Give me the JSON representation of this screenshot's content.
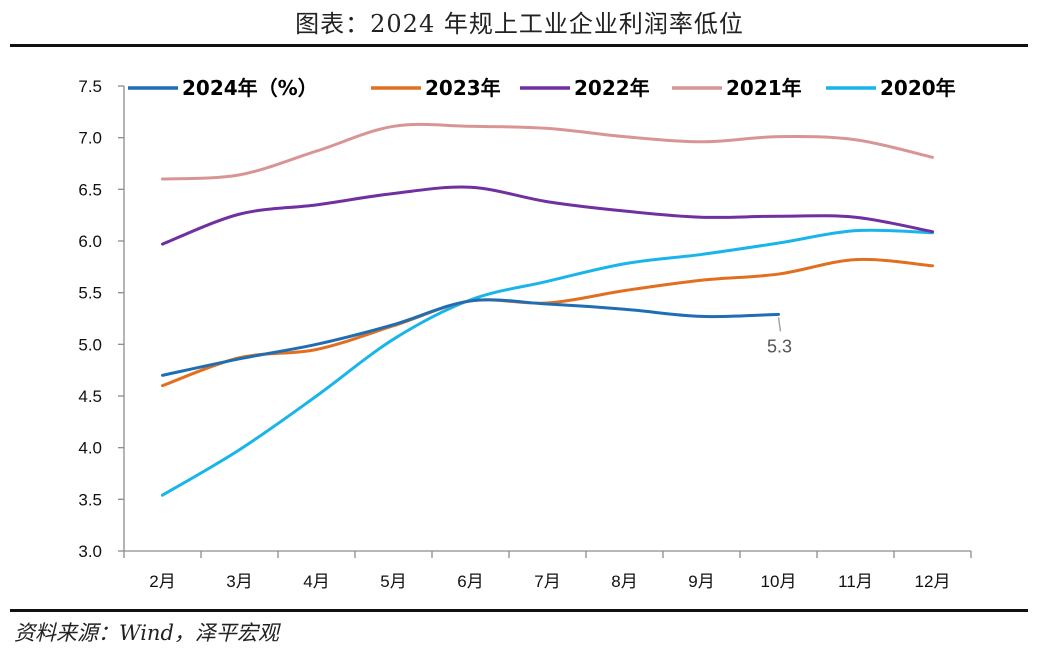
{
  "title": "图表：2024 年规上工业企业利润率低位",
  "source": "资料来源：Wind，泽平宏观",
  "chart_data": {
    "type": "line",
    "categories": [
      "2月",
      "3月",
      "4月",
      "5月",
      "6月",
      "7月",
      "8月",
      "9月",
      "10月",
      "11月",
      "12月"
    ],
    "ylim": [
      3.0,
      7.5
    ],
    "yticks": [
      "3.0",
      "3.5",
      "4.0",
      "4.5",
      "5.0",
      "5.5",
      "6.0",
      "6.5",
      "7.0",
      "7.5"
    ],
    "ytick_values": [
      3.0,
      3.5,
      4.0,
      4.5,
      5.0,
      5.5,
      6.0,
      6.5,
      7.0,
      7.5
    ],
    "legend_position": "top",
    "grid": false,
    "series": [
      {
        "name": "2024年（%）",
        "color": "#1f6eb3",
        "values": [
          4.7,
          4.86,
          5.0,
          5.19,
          5.42,
          5.39,
          5.34,
          5.27,
          5.29,
          null,
          null
        ]
      },
      {
        "name": "2023年",
        "color": "#e07020",
        "values": [
          4.6,
          4.87,
          4.95,
          5.18,
          5.42,
          5.4,
          5.52,
          5.62,
          5.68,
          5.82,
          5.76
        ]
      },
      {
        "name": "2022年",
        "color": "#7030a0",
        "values": [
          5.97,
          6.26,
          6.35,
          6.46,
          6.52,
          6.38,
          6.29,
          6.23,
          6.24,
          6.23,
          6.09
        ]
      },
      {
        "name": "2021年",
        "color": "#d99594",
        "values": [
          6.6,
          6.64,
          6.87,
          7.11,
          7.11,
          7.09,
          7.01,
          6.96,
          7.01,
          6.98,
          6.81
        ]
      },
      {
        "name": "2020年",
        "color": "#19b5ea",
        "values": [
          3.54,
          3.98,
          4.5,
          5.05,
          5.43,
          5.61,
          5.78,
          5.87,
          5.98,
          6.1,
          6.08
        ]
      }
    ],
    "annotations": [
      {
        "series": "2024年（%）",
        "category": "10月",
        "text": "5.3"
      }
    ]
  }
}
